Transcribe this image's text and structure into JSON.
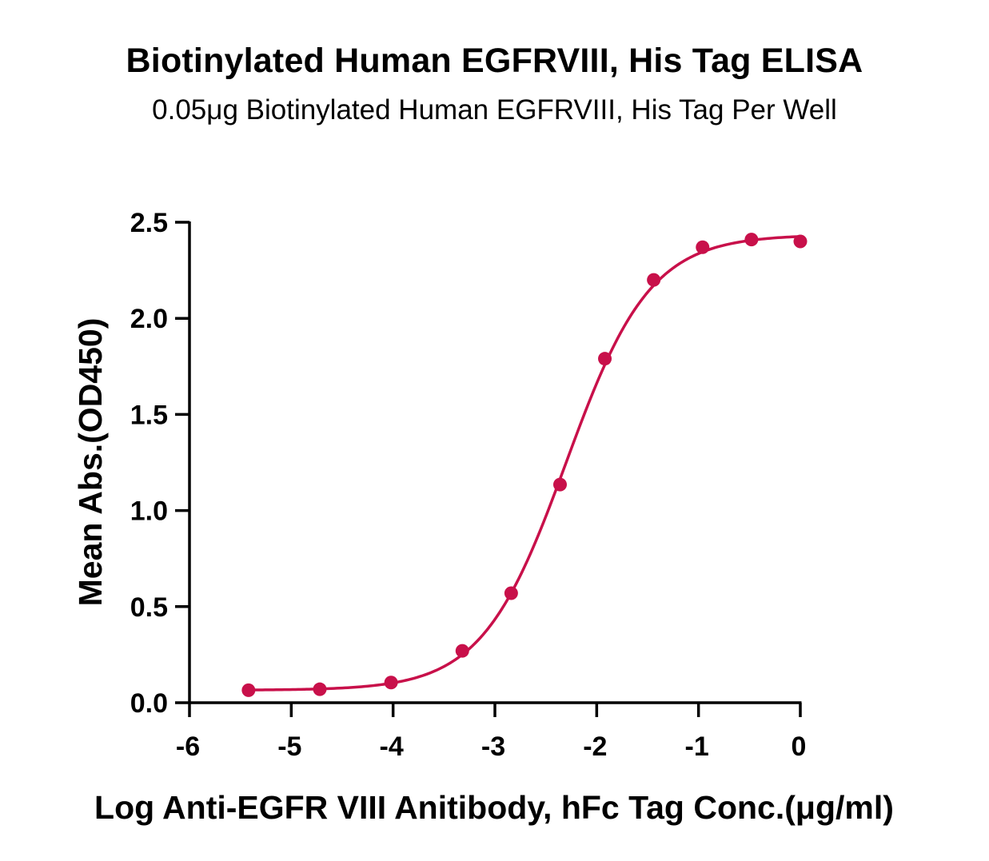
{
  "chart_data": {
    "type": "scatter",
    "title": "Biotinylated Human EGFRVIII, His Tag ELISA",
    "subtitle": "0.05μg Biotinylated Human EGFRVIII, His Tag Per Well",
    "xlabel": "Log Anti-EGFR VIII Anitibody, hFc Tag Conc.(μg/ml)",
    "ylabel": "Mean Abs.(OD450)",
    "xlim": [
      -6,
      0
    ],
    "ylim": [
      0,
      2.5
    ],
    "x_ticks": [
      "-6",
      "-5",
      "-4",
      "-3",
      "-2",
      "-1",
      "0"
    ],
    "y_ticks": [
      "0.0",
      "0.5",
      "1.0",
      "1.5",
      "2.0",
      "2.5"
    ],
    "grid": false,
    "color": "#c8104a",
    "series": [
      {
        "x": [
          -5.42,
          -4.72,
          -4.02,
          -3.32,
          -2.84,
          -2.36,
          -1.92,
          -1.44,
          -0.96,
          -0.48,
          0.0
        ],
        "y": [
          0.065,
          0.07,
          0.105,
          0.27,
          0.57,
          1.135,
          1.79,
          2.2,
          2.37,
          2.41,
          2.4
        ]
      }
    ],
    "fit": {
      "model": "4PL",
      "bottom": 0.065,
      "top": 2.435,
      "log_ec50": -2.3,
      "hill_slope": 1.05,
      "x_range": [
        -5.42,
        0.0
      ]
    }
  }
}
